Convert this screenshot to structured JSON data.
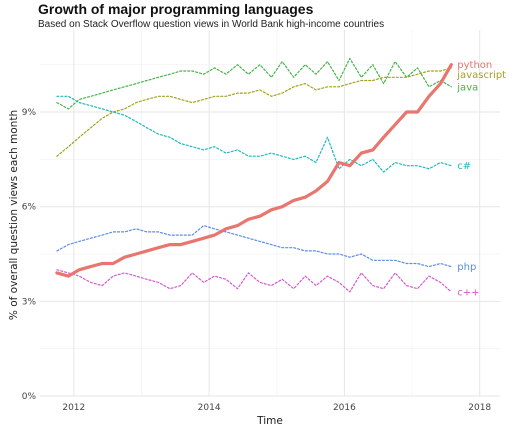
{
  "title": "Growth of major programming languages",
  "subtitle": "Based on Stack Overflow question views in World Bank high-income countries",
  "chart_data": {
    "type": "line",
    "title": "Growth of major programming languages",
    "subtitle": "Based on Stack Overflow question views in World Bank high-income countries",
    "xlabel": "Time",
    "ylabel": "% of overall question views each month",
    "xlim": [
      2011.5,
      2018.3
    ],
    "ylim": [
      0,
      11.6
    ],
    "x_ticks": [
      2012,
      2014,
      2016,
      2018
    ],
    "x_tick_labels": [
      "2012",
      "2014",
      "2016",
      "2018"
    ],
    "y_ticks": [
      0,
      3,
      6,
      9
    ],
    "y_tick_labels": [
      "0%",
      "3%",
      "6%",
      "9%"
    ],
    "grid": true,
    "legend": "direct labels at right end of each line",
    "x": [
      2011.75,
      2011.92,
      2012.08,
      2012.25,
      2012.42,
      2012.58,
      2012.75,
      2012.92,
      2013.08,
      2013.25,
      2013.42,
      2013.58,
      2013.75,
      2013.92,
      2014.08,
      2014.25,
      2014.42,
      2014.58,
      2014.75,
      2014.92,
      2015.08,
      2015.25,
      2015.42,
      2015.58,
      2015.75,
      2015.92,
      2016.08,
      2016.25,
      2016.42,
      2016.58,
      2016.75,
      2016.92,
      2017.08,
      2017.25,
      2017.42,
      2017.58
    ],
    "series": [
      {
        "name": "python",
        "color": "#e8766f",
        "style": "solid",
        "values": [
          3.9,
          3.8,
          4.0,
          4.1,
          4.2,
          4.2,
          4.4,
          4.5,
          4.6,
          4.7,
          4.8,
          4.8,
          4.9,
          5.0,
          5.1,
          5.3,
          5.4,
          5.6,
          5.7,
          5.9,
          6.0,
          6.2,
          6.3,
          6.5,
          6.8,
          7.4,
          7.3,
          7.7,
          7.8,
          8.2,
          8.6,
          9.0,
          9.0,
          9.5,
          9.9,
          10.5
        ]
      },
      {
        "name": "javascript",
        "color": "#a3a21c",
        "style": "dotted",
        "values": [
          7.6,
          7.9,
          8.2,
          8.5,
          8.8,
          9.0,
          9.1,
          9.3,
          9.4,
          9.5,
          9.5,
          9.4,
          9.3,
          9.4,
          9.5,
          9.5,
          9.6,
          9.6,
          9.7,
          9.5,
          9.6,
          9.8,
          9.9,
          9.7,
          9.8,
          9.8,
          9.9,
          10.0,
          10.0,
          10.1,
          10.1,
          10.1,
          10.2,
          10.3,
          10.3,
          10.4
        ]
      },
      {
        "name": "java",
        "color": "#45b44b",
        "style": "dotted",
        "values": [
          9.3,
          9.1,
          9.4,
          9.5,
          9.6,
          9.7,
          9.8,
          9.9,
          10.0,
          10.1,
          10.2,
          10.3,
          10.3,
          10.2,
          10.4,
          10.2,
          10.5,
          10.2,
          10.5,
          10.1,
          10.6,
          10.1,
          10.5,
          10.2,
          10.6,
          10.0,
          10.7,
          10.1,
          10.5,
          9.9,
          10.6,
          10.1,
          10.4,
          9.8,
          10.0,
          9.8
        ]
      },
      {
        "name": "c#",
        "color": "#1fb8c0",
        "style": "dotted",
        "values": [
          9.5,
          9.5,
          9.3,
          9.2,
          9.1,
          9.0,
          8.9,
          8.7,
          8.5,
          8.3,
          8.2,
          8.0,
          7.9,
          7.8,
          7.9,
          7.7,
          7.8,
          7.6,
          7.6,
          7.7,
          7.6,
          7.5,
          7.6,
          7.4,
          8.2,
          7.2,
          7.5,
          7.3,
          7.5,
          7.1,
          7.4,
          7.3,
          7.3,
          7.2,
          7.4,
          7.3
        ]
      },
      {
        "name": "php",
        "color": "#5c8be8",
        "style": "dotted",
        "values": [
          4.6,
          4.8,
          4.9,
          5.0,
          5.1,
          5.2,
          5.2,
          5.3,
          5.2,
          5.2,
          5.1,
          5.1,
          5.1,
          5.4,
          5.3,
          5.2,
          5.1,
          5.0,
          4.9,
          4.8,
          4.7,
          4.7,
          4.6,
          4.6,
          4.5,
          4.5,
          4.4,
          4.5,
          4.3,
          4.3,
          4.3,
          4.2,
          4.2,
          4.1,
          4.2,
          4.1
        ]
      },
      {
        "name": "c++",
        "color": "#d65ad3",
        "style": "dotted",
        "values": [
          4.0,
          3.9,
          3.8,
          3.6,
          3.5,
          3.8,
          3.9,
          3.8,
          3.7,
          3.6,
          3.4,
          3.5,
          3.9,
          3.6,
          3.8,
          3.7,
          3.4,
          3.9,
          3.6,
          3.5,
          3.7,
          3.4,
          3.8,
          3.5,
          3.8,
          3.6,
          3.3,
          3.9,
          3.5,
          3.4,
          3.9,
          3.5,
          3.4,
          3.8,
          3.6,
          3.3
        ]
      }
    ]
  }
}
